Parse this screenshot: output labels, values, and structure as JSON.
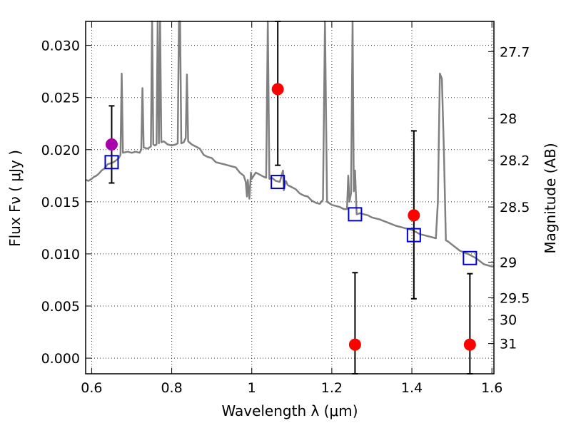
{
  "chart_data": {
    "type": "line",
    "title": "",
    "xlabel": "Wavelength  λ (μm)",
    "ylabel": "Flux  Fν  ( μJy )",
    "ylabel_right": "Magnitude (AB)",
    "xlim": [
      0.585,
      1.605
    ],
    "ylim": [
      -0.0015,
      0.0323
    ],
    "grid": true,
    "x_ticks": [
      {
        "value": 0.6,
        "label": "0.6"
      },
      {
        "value": 0.8,
        "label": "0.8"
      },
      {
        "value": 1.0,
        "label": "1"
      },
      {
        "value": 1.2,
        "label": "1.2"
      },
      {
        "value": 1.4,
        "label": "1.4"
      },
      {
        "value": 1.6,
        "label": "1.6"
      }
    ],
    "y_ticks": [
      {
        "value": 0.0,
        "label": "0.000"
      },
      {
        "value": 0.005,
        "label": "0.005"
      },
      {
        "value": 0.01,
        "label": "0.010"
      },
      {
        "value": 0.015,
        "label": "0.015"
      },
      {
        "value": 0.02,
        "label": "0.020"
      },
      {
        "value": 0.025,
        "label": "0.025"
      },
      {
        "value": 0.03,
        "label": "0.030"
      }
    ],
    "right_ticks": [
      {
        "flux": 0.0294,
        "label": "27.7"
      },
      {
        "flux": 0.023,
        "label": "28"
      },
      {
        "flux": 0.019,
        "label": "28.2"
      },
      {
        "flux": 0.0145,
        "label": "28.5"
      },
      {
        "flux": 0.0092,
        "label": "29"
      },
      {
        "flux": 0.0058,
        "label": "29.5"
      },
      {
        "flux": 0.0037,
        "label": "30"
      },
      {
        "flux": 0.0014,
        "label": "31"
      }
    ],
    "series": [
      {
        "kind": "spectrum",
        "color": "#808080",
        "points": [
          [
            0.585,
            0.0171
          ],
          [
            0.592,
            0.017
          ],
          [
            0.6,
            0.0172
          ],
          [
            0.606,
            0.0174
          ],
          [
            0.612,
            0.0175
          ],
          [
            0.618,
            0.0177
          ],
          [
            0.625,
            0.018
          ],
          [
            0.632,
            0.0182
          ],
          [
            0.64,
            0.0186
          ],
          [
            0.648,
            0.0187
          ],
          [
            0.655,
            0.0188
          ],
          [
            0.662,
            0.019
          ],
          [
            0.668,
            0.0192
          ],
          [
            0.672,
            0.0195
          ],
          [
            0.675,
            0.0273
          ],
          [
            0.678,
            0.0197
          ],
          [
            0.69,
            0.0198
          ],
          [
            0.7,
            0.0197
          ],
          [
            0.71,
            0.0198
          ],
          [
            0.72,
            0.0197
          ],
          [
            0.724,
            0.02
          ],
          [
            0.727,
            0.0259
          ],
          [
            0.73,
            0.0202
          ],
          [
            0.74,
            0.0201
          ],
          [
            0.748,
            0.0203
          ],
          [
            0.751,
            0.0323
          ],
          [
            0.754,
            0.0205
          ],
          [
            0.758,
            0.0204
          ],
          [
            0.762,
            0.0205
          ],
          [
            0.765,
            0.0323
          ],
          [
            0.768,
            0.0206
          ],
          [
            0.771,
            0.0323
          ],
          [
            0.774,
            0.0207
          ],
          [
            0.78,
            0.0208
          ],
          [
            0.79,
            0.0205
          ],
          [
            0.8,
            0.0204
          ],
          [
            0.81,
            0.0205
          ],
          [
            0.815,
            0.0206
          ],
          [
            0.818,
            0.0323
          ],
          [
            0.821,
            0.0323
          ],
          [
            0.824,
            0.0206
          ],
          [
            0.83,
            0.0207
          ],
          [
            0.835,
            0.0211
          ],
          [
            0.838,
            0.0272
          ],
          [
            0.841,
            0.0208
          ],
          [
            0.85,
            0.0205
          ],
          [
            0.86,
            0.0203
          ],
          [
            0.87,
            0.0201
          ],
          [
            0.88,
            0.0195
          ],
          [
            0.89,
            0.0193
          ],
          [
            0.9,
            0.0192
          ],
          [
            0.91,
            0.0188
          ],
          [
            0.92,
            0.0187
          ],
          [
            0.93,
            0.0186
          ],
          [
            0.94,
            0.0185
          ],
          [
            0.95,
            0.0184
          ],
          [
            0.96,
            0.0183
          ],
          [
            0.97,
            0.0178
          ],
          [
            0.98,
            0.0175
          ],
          [
            0.985,
            0.0169
          ],
          [
            0.988,
            0.0155
          ],
          [
            0.99,
            0.0171
          ],
          [
            0.994,
            0.0153
          ],
          [
            0.998,
            0.0178
          ],
          [
            1.0,
            0.0172
          ],
          [
            1.005,
            0.0175
          ],
          [
            1.01,
            0.0178
          ],
          [
            1.02,
            0.0176
          ],
          [
            1.03,
            0.0174
          ],
          [
            1.036,
            0.0173
          ],
          [
            1.04,
            0.0323
          ],
          [
            1.044,
            0.0172
          ],
          [
            1.05,
            0.0173
          ],
          [
            1.06,
            0.017
          ],
          [
            1.07,
            0.0169
          ],
          [
            1.078,
            0.018
          ],
          [
            1.08,
            0.0161
          ],
          [
            1.085,
            0.017
          ],
          [
            1.09,
            0.0166
          ],
          [
            1.1,
            0.0164
          ],
          [
            1.11,
            0.0162
          ],
          [
            1.12,
            0.0158
          ],
          [
            1.13,
            0.0156
          ],
          [
            1.14,
            0.0155
          ],
          [
            1.15,
            0.0151
          ],
          [
            1.16,
            0.0149
          ],
          [
            1.17,
            0.0148
          ],
          [
            1.178,
            0.0152
          ],
          [
            1.183,
            0.0323
          ],
          [
            1.188,
            0.015
          ],
          [
            1.2,
            0.0147
          ],
          [
            1.21,
            0.0146
          ],
          [
            1.22,
            0.0145
          ],
          [
            1.23,
            0.0143
          ],
          [
            1.238,
            0.0143
          ],
          [
            1.241,
            0.0175
          ],
          [
            1.244,
            0.015
          ],
          [
            1.248,
            0.0158
          ],
          [
            1.252,
            0.0323
          ],
          [
            1.255,
            0.016
          ],
          [
            1.258,
            0.018
          ],
          [
            1.262,
            0.0138
          ],
          [
            1.27,
            0.0139
          ],
          [
            1.28,
            0.0138
          ],
          [
            1.29,
            0.0137
          ],
          [
            1.3,
            0.0135
          ],
          [
            1.32,
            0.0133
          ],
          [
            1.34,
            0.013
          ],
          [
            1.36,
            0.0127
          ],
          [
            1.38,
            0.0125
          ],
          [
            1.4,
            0.0123
          ],
          [
            1.42,
            0.0119
          ],
          [
            1.44,
            0.0117
          ],
          [
            1.46,
            0.0115
          ],
          [
            1.465,
            0.015
          ],
          [
            1.47,
            0.0273
          ],
          [
            1.475,
            0.0268
          ],
          [
            1.48,
            0.02
          ],
          [
            1.485,
            0.0113
          ],
          [
            1.49,
            0.0112
          ],
          [
            1.5,
            0.0109
          ],
          [
            1.52,
            0.0103
          ],
          [
            1.54,
            0.01
          ],
          [
            1.56,
            0.0096
          ],
          [
            1.58,
            0.009
          ],
          [
            1.6,
            0.0088
          ],
          [
            1.605,
            0.0088
          ]
        ]
      },
      {
        "kind": "model_photometry",
        "marker": "open-square",
        "color": "#0000cc",
        "points": [
          [
            0.65,
            0.0188
          ],
          [
            1.065,
            0.0169
          ],
          [
            1.258,
            0.0138
          ],
          [
            1.405,
            0.0118
          ],
          [
            1.545,
            0.0096
          ]
        ]
      },
      {
        "kind": "observed",
        "marker": "filled-circle",
        "color": "#ff0000",
        "points": [
          {
            "x": 1.065,
            "y": 0.0258,
            "ylow": 0.0185,
            "yhigh": 0.0323
          },
          {
            "x": 1.258,
            "y": 0.0013,
            "ylow": -0.0015,
            "yhigh": 0.0082
          },
          {
            "x": 1.405,
            "y": 0.0137,
            "ylow": 0.0057,
            "yhigh": 0.0218
          },
          {
            "x": 1.545,
            "y": 0.0013,
            "ylow": -0.0015,
            "yhigh": 0.0081
          }
        ]
      },
      {
        "kind": "observed",
        "marker": "filled-circle",
        "color": "#aa00aa",
        "points": [
          {
            "x": 0.65,
            "y": 0.0205,
            "ylow": 0.0168,
            "yhigh": 0.0242
          }
        ]
      }
    ]
  }
}
